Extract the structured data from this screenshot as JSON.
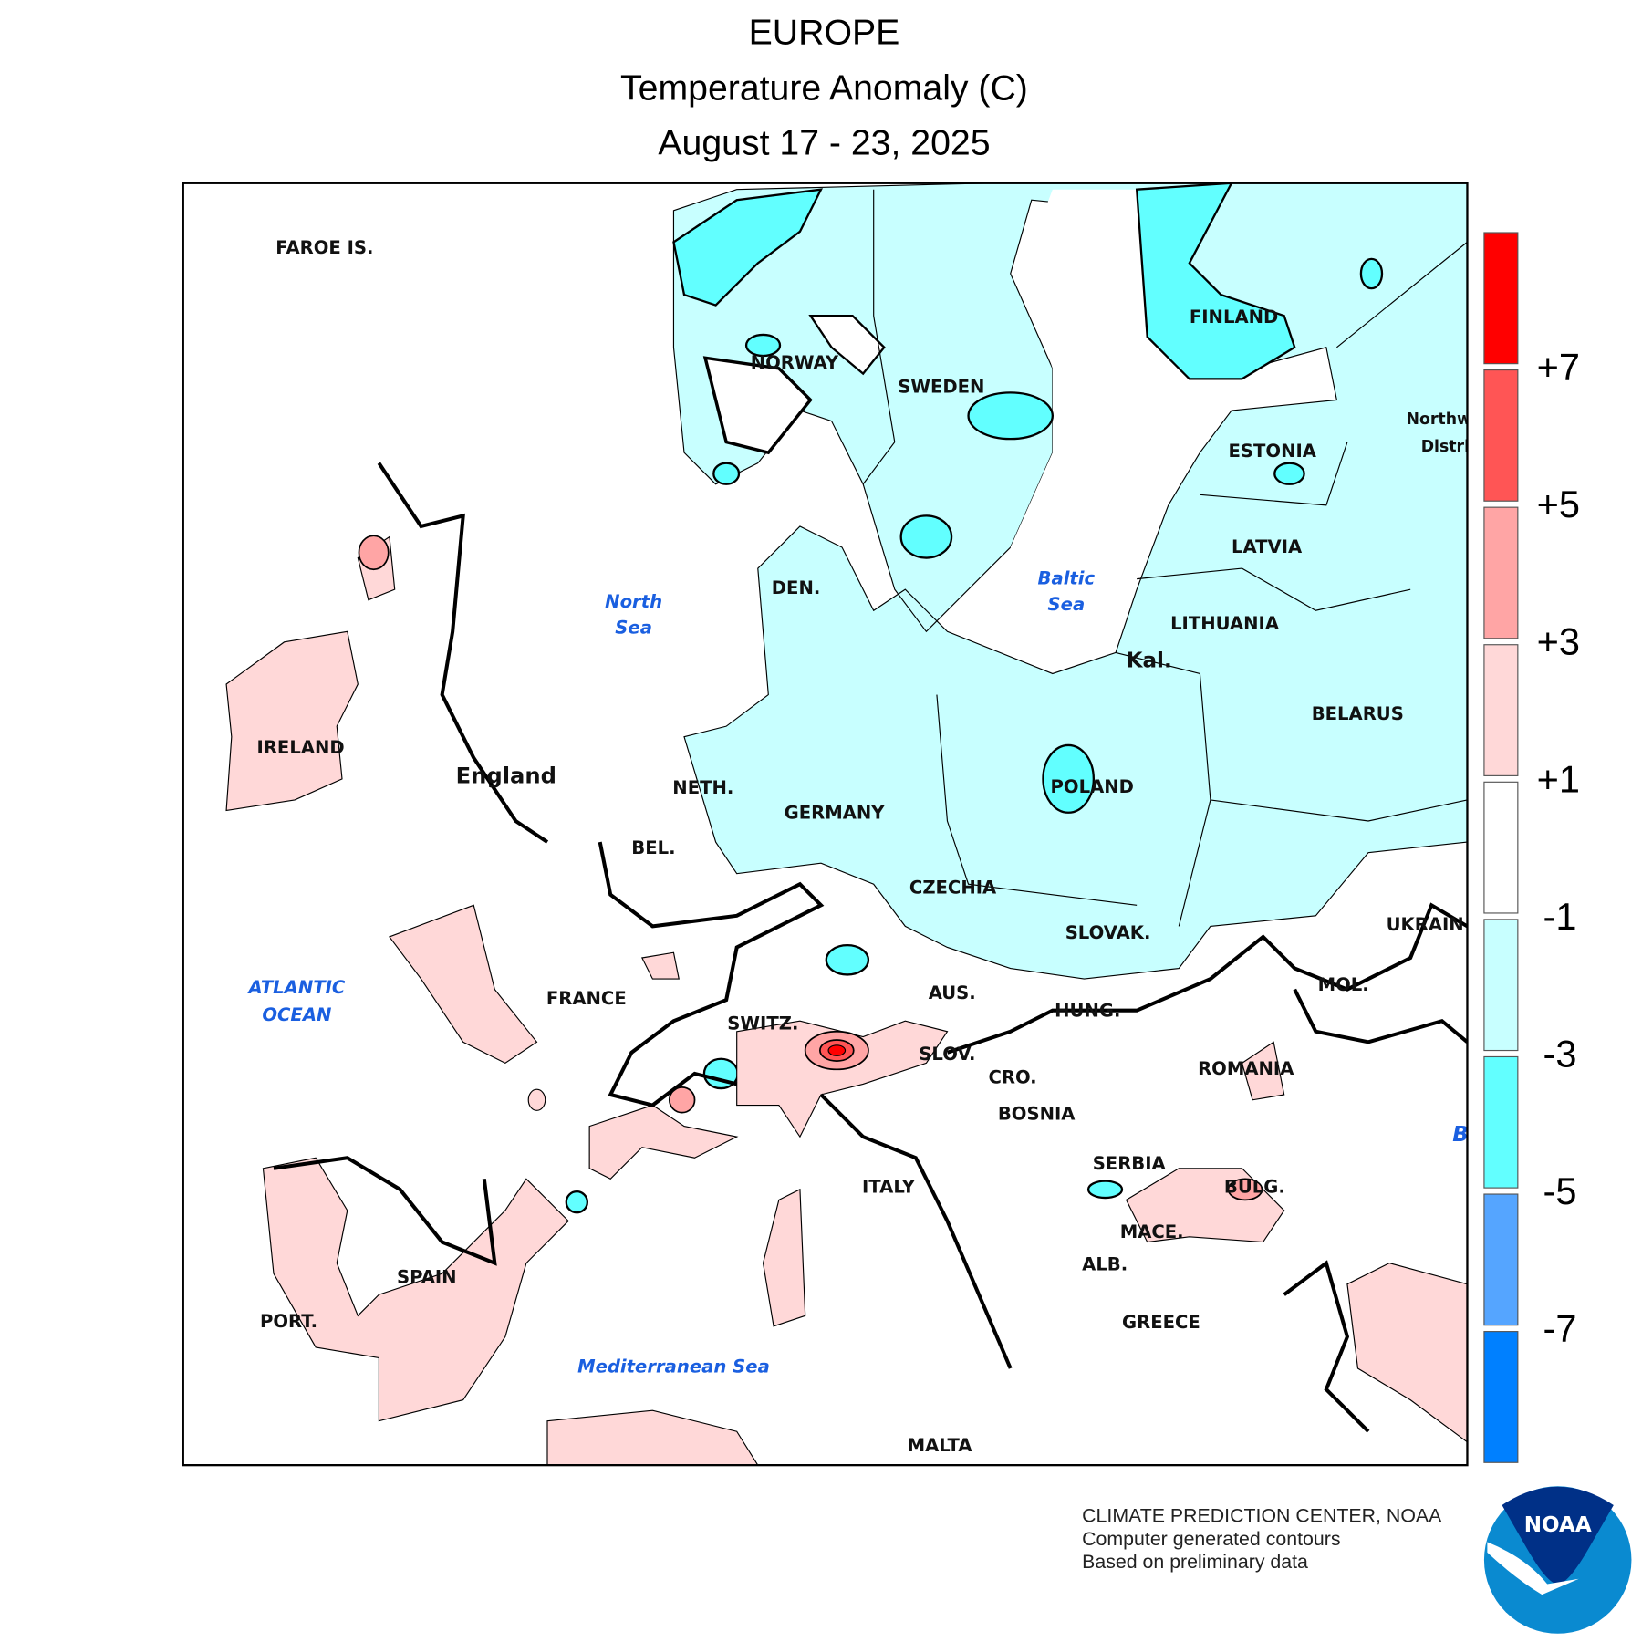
{
  "title": {
    "line1": "EUROPE",
    "line2": "Temperature Anomaly (C)",
    "line3": "August 17 - 23, 2025"
  },
  "legend": {
    "labels": [
      "+7",
      "+5",
      "+3",
      "+1",
      "-1",
      "-3",
      "-5",
      "-7"
    ],
    "colors": [
      "#ff0000",
      "#ff5555",
      "#ffa5a5",
      "#ffd8d8",
      "#ffffff",
      "#c8ffff",
      "#62ffff",
      "#55a5ff",
      "#0080ff"
    ]
  },
  "map": {
    "labels": {
      "faroe": "FAROE IS.",
      "norway": "NORWAY",
      "sweden": "SWEDEN",
      "finland": "FINLAND",
      "estonia": "ESTONIA",
      "latvia": "LATVIA",
      "lithuania": "LITHUANIA",
      "kal": "Kal.",
      "belarus": "BELARUS",
      "nw1": "Northw",
      "nw2": "Distri",
      "den": "DEN.",
      "ireland": "IRELAND",
      "england": "England",
      "neth": "NETH.",
      "germany": "GERMANY",
      "poland": "POLAND",
      "bel": "BEL.",
      "czechia": "CZECHIA",
      "slovak": "SLOVAK.",
      "ukraine": "UKRAIN",
      "france": "FRANCE",
      "switz": "SWITZ.",
      "aus": "AUS.",
      "hung": "HUNG.",
      "mol": "MOL.",
      "slov": "SLOV.",
      "cro": "CRO.",
      "romania": "ROMANIA",
      "bosnia": "BOSNIA",
      "serbia": "SERBIA",
      "italy": "ITALY",
      "bulg": "BULG.",
      "mace": "MACE.",
      "alb": "ALB.",
      "spain": "SPAIN",
      "port": "PORT.",
      "greece": "GREECE",
      "malta": "MALTA"
    },
    "seas": {
      "north1": "North",
      "north2": "Sea",
      "baltic1": "Baltic",
      "baltic2": "Sea",
      "atlantic1": "ATLANTIC",
      "atlantic2": "OCEAN",
      "med": "Mediterranean Sea",
      "black": "B"
    }
  },
  "footer": {
    "line1": "CLIMATE PREDICTION CENTER, NOAA",
    "line2": "Computer generated contours",
    "line3": "Based on preliminary data"
  },
  "logo": {
    "text": "NOAA"
  }
}
